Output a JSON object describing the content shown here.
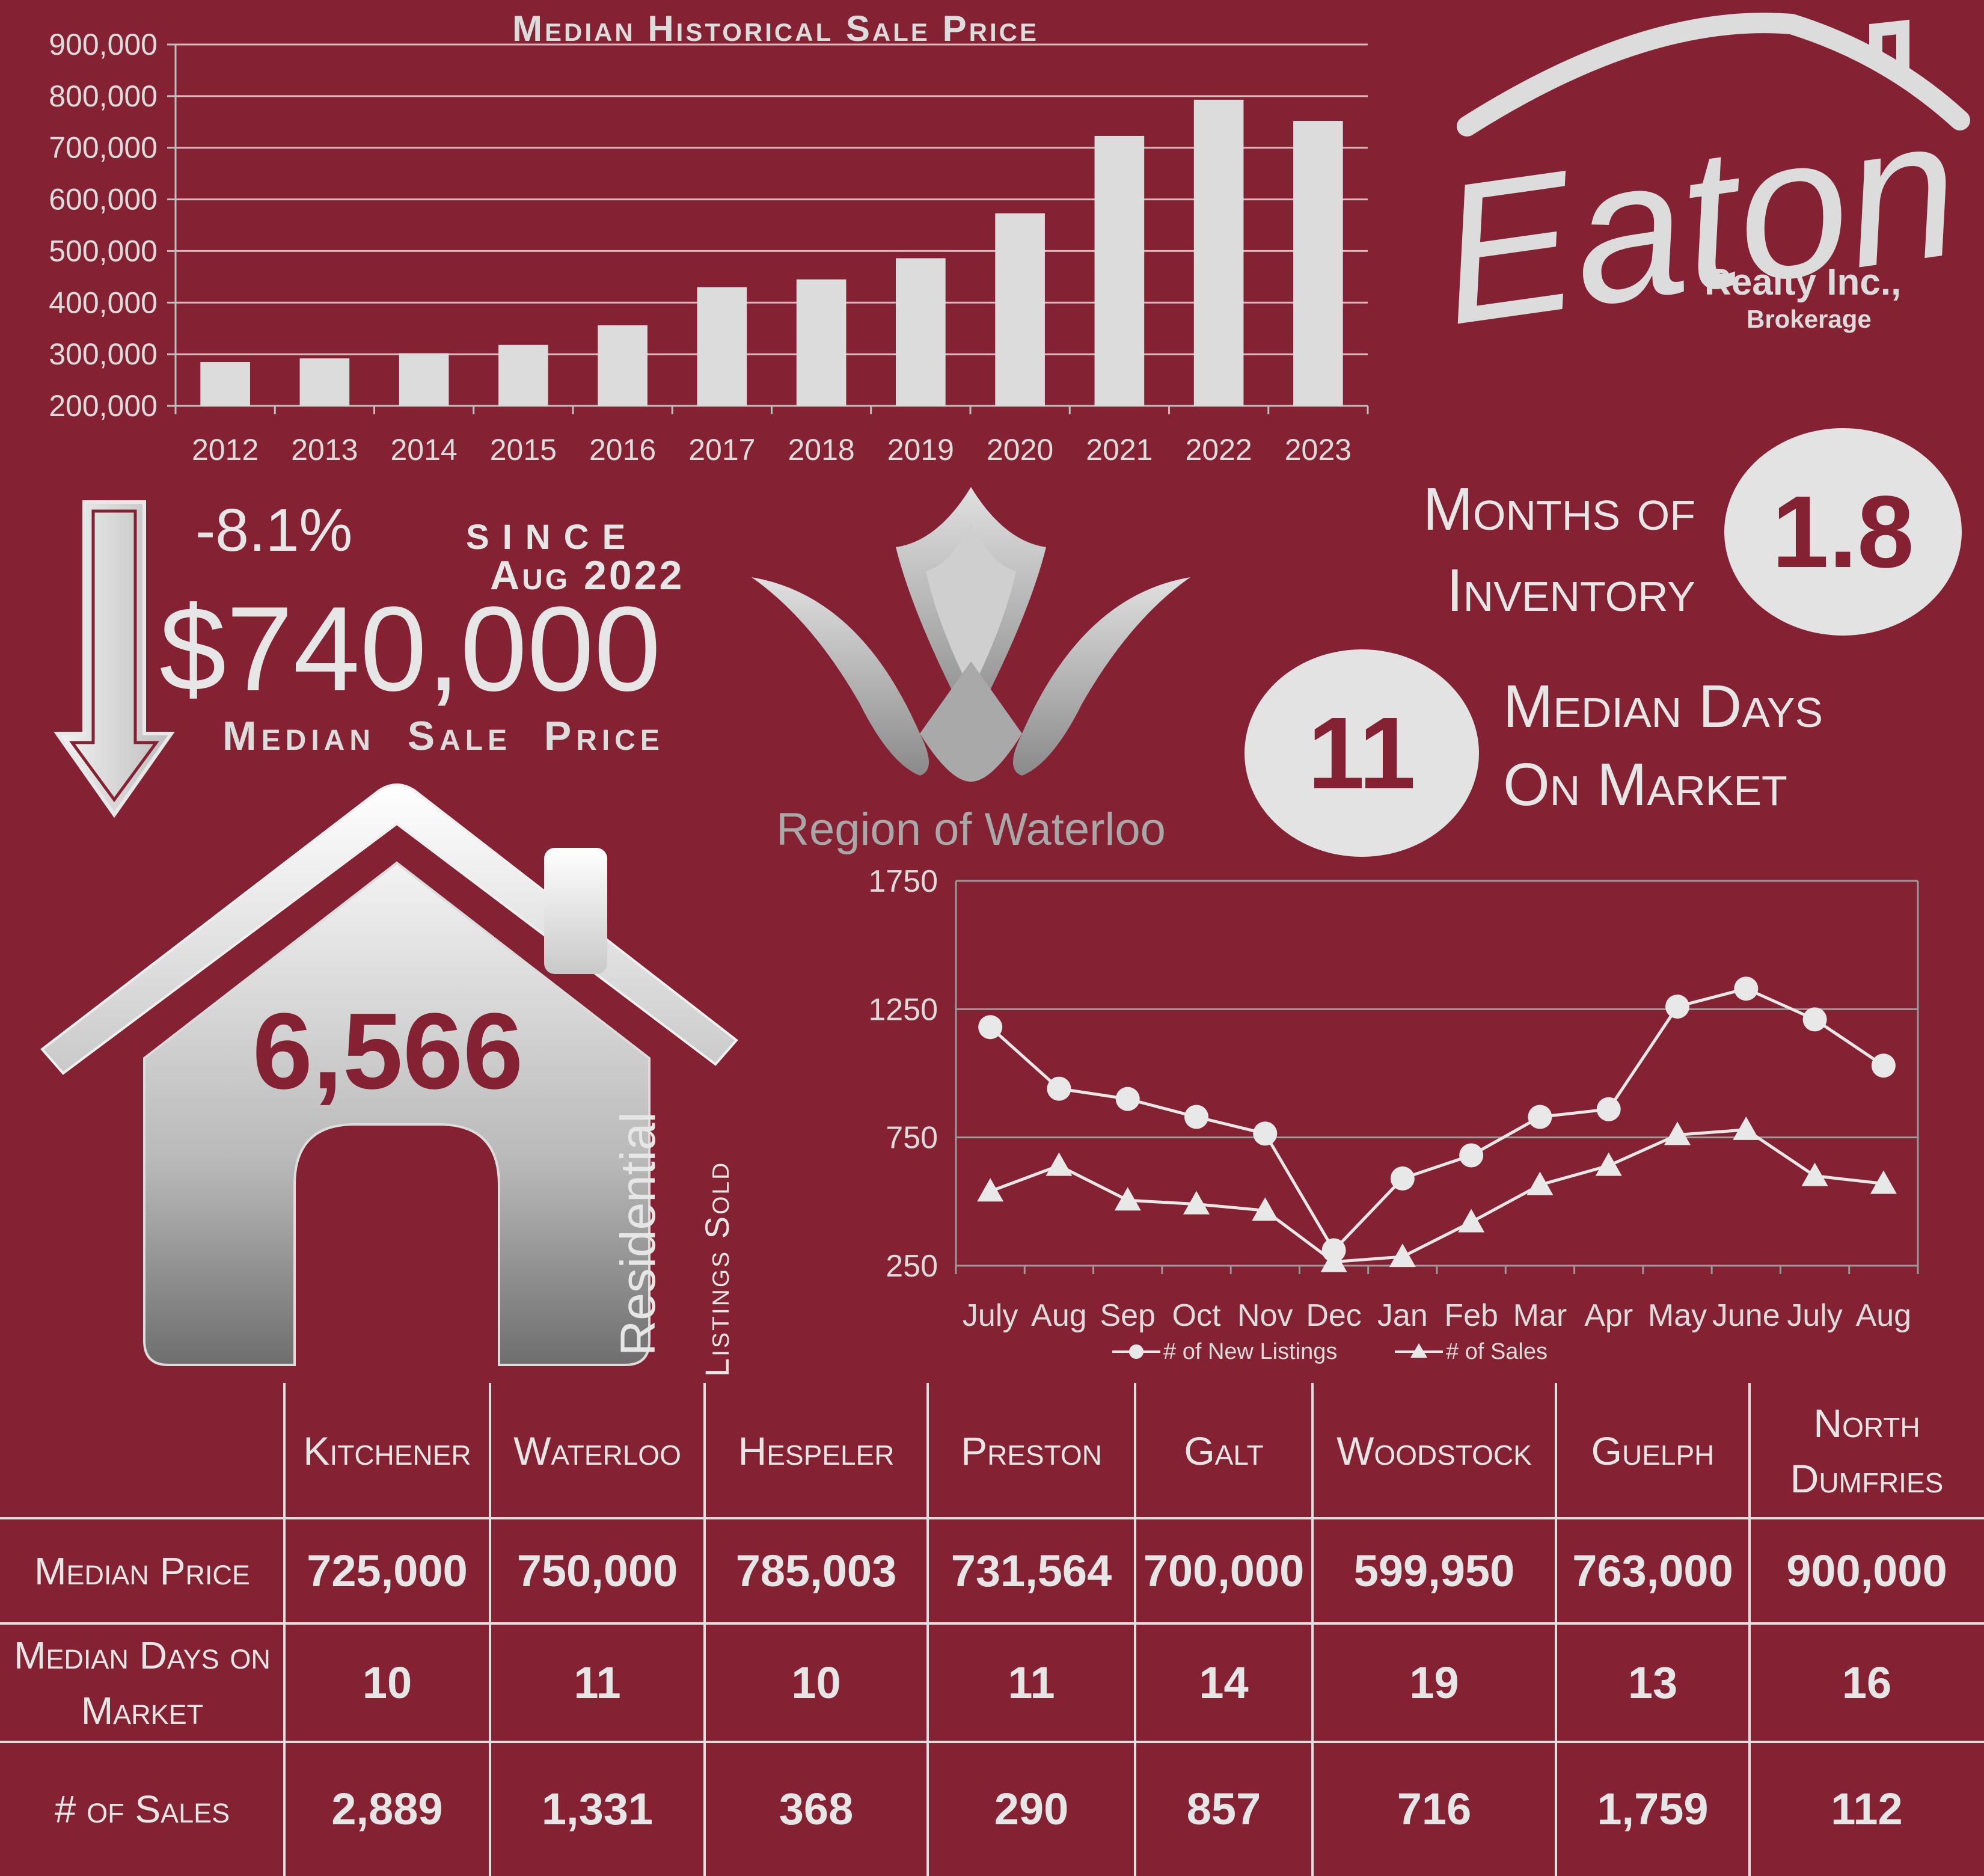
{
  "chart_data": [
    {
      "type": "bar",
      "title": "Median Historical Sale Price",
      "categories": [
        "2012",
        "2013",
        "2014",
        "2015",
        "2016",
        "2017",
        "2018",
        "2019",
        "2020",
        "2021",
        "2022",
        "2023"
      ],
      "values": [
        285000,
        292000,
        302000,
        318000,
        356000,
        430000,
        445000,
        486000,
        573000,
        723000,
        793000,
        752000
      ],
      "ylim": [
        200000,
        900000
      ],
      "yticks": [
        "200,000",
        "300,000",
        "400,000",
        "500,000",
        "600,000",
        "700,000",
        "800,000",
        "900,000"
      ],
      "grid": true
    },
    {
      "type": "line",
      "categories": [
        "July",
        "Aug",
        "Sep",
        "Oct",
        "Nov",
        "Dec",
        "Jan",
        "Feb",
        "Mar",
        "Apr",
        "May",
        "June",
        "July",
        "Aug"
      ],
      "series": [
        {
          "name": "# of New Listings",
          "values": [
            1180,
            940,
            900,
            830,
            765,
            310,
            590,
            680,
            830,
            860,
            1260,
            1330,
            1210,
            1030
          ]
        },
        {
          "name": "# of Sales",
          "values": [
            540,
            640,
            505,
            490,
            465,
            265,
            285,
            420,
            565,
            640,
            760,
            780,
            600,
            570
          ]
        }
      ],
      "ylim": [
        250,
        1750
      ],
      "yticks": [
        "250",
        "750",
        "1250",
        "1750"
      ],
      "grid": true,
      "legend": "bottom"
    }
  ],
  "logo": {
    "script": "Eaton",
    "company": "Realty Inc.,",
    "sub": "Brokerage"
  },
  "region": {
    "name": "Region of Waterloo"
  },
  "stats": {
    "change_pct": "-8.1%",
    "since_label": "since",
    "since_date": "Aug 2022",
    "median_price": "$740,000",
    "median_price_label": "Median  Sale  Price",
    "listings_sold": "6,566",
    "residential_label": "Residential",
    "listings_sold_label": "Listings Sold",
    "months_inventory_label_1": "Months of",
    "months_inventory_label_2": "Inventory",
    "months_inventory": "1.8",
    "median_days": "11",
    "median_days_label_1": "Median Days",
    "median_days_label_2": "On Market"
  },
  "table": {
    "columns": [
      "Kitchener",
      "Waterloo",
      "Hespeler",
      "Preston",
      "Galt",
      "Woodstock",
      "Guelph",
      "North Dumfries"
    ],
    "rows": [
      {
        "label": "Median Price",
        "values": [
          "725,000",
          "750,000",
          "785,003",
          "731,564",
          "700,000",
          "599,950",
          "763,000",
          "900,000"
        ]
      },
      {
        "label": "Median Days on Market",
        "values": [
          "10",
          "11",
          "10",
          "11",
          "14",
          "19",
          "13",
          "16"
        ]
      },
      {
        "label": "# of Sales",
        "values": [
          "2,889",
          "1,331",
          "368",
          "290",
          "857",
          "716",
          "1,759",
          "112"
        ]
      }
    ]
  },
  "colors": {
    "background": "#842233",
    "bars": "#dcdcdc",
    "text": "#dcdcdc",
    "accent": "#842233"
  }
}
